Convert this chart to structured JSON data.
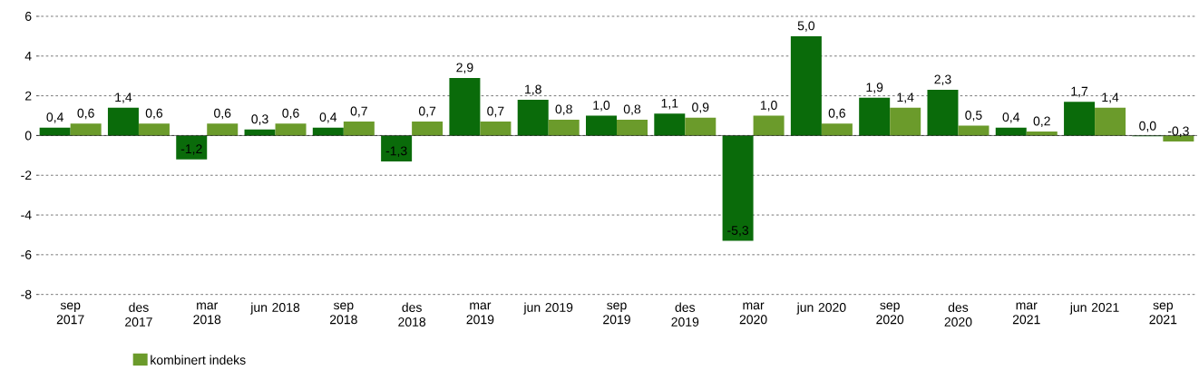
{
  "chart_data": {
    "type": "bar",
    "categories": [
      "sep 2017",
      "des 2017",
      "mar 2018",
      "jun 2018",
      "sep 2018",
      "des 2018",
      "mar 2019",
      "jun 2019",
      "sep 2019",
      "des 2019",
      "mar 2020",
      "jun 2020",
      "sep 2020",
      "des 2020",
      "mar 2021",
      "jun 2021",
      "sep 2021"
    ],
    "series": [
      {
        "color": "#0a6b0a",
        "values": [
          0.4,
          1.4,
          -1.2,
          0.3,
          0.4,
          -1.3,
          2.9,
          1.8,
          1.0,
          1.1,
          -5.3,
          5.0,
          1.9,
          2.3,
          0.4,
          1.7,
          -0.04
        ],
        "value_labels": [
          "0,4",
          "1,4",
          "-1,2",
          "0,3",
          "0,4",
          "-1,3",
          "2,9",
          "1,8",
          "1,0",
          "1,1",
          "-5,3",
          "5,0",
          "1,9",
          "2,3",
          "0,4",
          "1,7",
          "0,0"
        ]
      },
      {
        "name": "kombinert indeks",
        "color": "#6b9b2b",
        "values": [
          0.6,
          0.6,
          0.6,
          0.6,
          0.7,
          0.7,
          0.7,
          0.8,
          0.8,
          0.9,
          1.0,
          0.6,
          1.4,
          0.5,
          0.2,
          1.4,
          -0.3
        ],
        "value_labels": [
          "0,6",
          "0,6",
          "0,6",
          "0,6",
          "0,7",
          "0,7",
          "0,7",
          "0,8",
          "0,8",
          "0,9",
          "1,0",
          "0,6",
          "1,4",
          "0,5",
          "0,2",
          "1,4",
          "-0,3"
        ]
      }
    ],
    "ylim": [
      -8,
      6
    ],
    "yticks": [
      -8,
      -6,
      -4,
      -2,
      0,
      2,
      4,
      6
    ],
    "grid": "y",
    "legend": "bottom"
  }
}
